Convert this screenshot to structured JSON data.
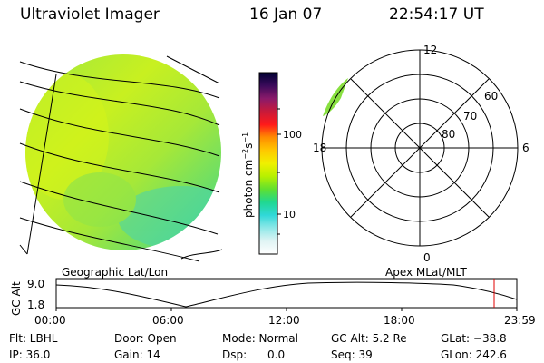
{
  "header": {
    "title": "Ultraviolet Imager",
    "date": "16 Jan 07",
    "time": "22:54:17 UT"
  },
  "colorbar": {
    "unit_label": "photon cm",
    "unit_exp1": "−2",
    "unit_mid": "s",
    "unit_exp2": "−1",
    "ticks": [
      "100",
      "10"
    ],
    "colors": [
      "#000033",
      "#3a0a5a",
      "#8a1a6a",
      "#c81a3a",
      "#ff1a1a",
      "#ff8c00",
      "#ffc800",
      "#f0f000",
      "#b8f000",
      "#60e030",
      "#20d890",
      "#30d8d8",
      "#90e8e8",
      "#e0f4f4",
      "#ffffff"
    ]
  },
  "polar_plot": {
    "lat_labels": [
      "80",
      "70",
      "60"
    ],
    "mlt_top": "12",
    "mlt_left": "18",
    "mlt_right": "6",
    "mlt_bottom": "0"
  },
  "bottom_labels": {
    "left": "Geographic Lat/Lon",
    "right": "Apex MLat/MLT"
  },
  "altitude_plot": {
    "axis_label": "GC Alt",
    "y_ticks": [
      "9.0",
      "1.8"
    ],
    "x_ticks": [
      "00:00",
      "06:00",
      "12:00",
      "18:00",
      "23:59"
    ],
    "marker_color": "#e00000"
  },
  "info": {
    "flt": "Flt: LBHL",
    "ip": "IP: 36.0",
    "door": "Door: Open",
    "gain": "Gain: 14",
    "mode": "Mode: Normal",
    "dsp": "Dsp:      0.0",
    "gc_alt": "GC Alt: 5.2 Re",
    "seq": "Seq: 39",
    "glat": "GLat: −38.8",
    "glon": "GLon: 242.6"
  }
}
